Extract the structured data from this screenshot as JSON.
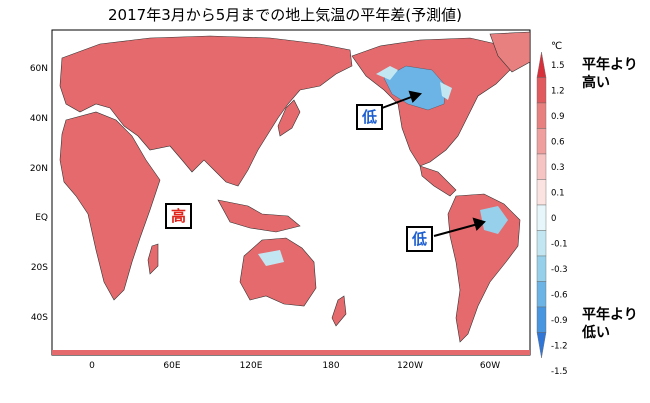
{
  "title": "2017年3月から5月までの地上気温の平年差(予測値)",
  "lat_labels": [
    "60N",
    "40N",
    "20N",
    "EQ",
    "20S",
    "40S"
  ],
  "lon_labels": [
    "0",
    "60E",
    "120E",
    "180",
    "120W",
    "60W"
  ],
  "colorbar": {
    "unit": "℃",
    "ticks": [
      "1.5",
      "1.2",
      "0.9",
      "0.6",
      "0.3",
      "0.1",
      "0",
      "-0.1",
      "-0.3",
      "-0.6",
      "-0.9",
      "-1.2",
      "-1.5"
    ],
    "top_label": "平年より\n高い",
    "bottom_label": "平年より\n低い",
    "colors": [
      "#d7303a",
      "#e05a5e",
      "#e8807f",
      "#ef9f9e",
      "#f5c4c3",
      "#fbe3e2",
      "#e6f6fa",
      "#c3e7f2",
      "#97d0ea",
      "#6cb4e6",
      "#4996e0",
      "#2f76d6"
    ]
  },
  "callouts": {
    "high": {
      "text": "高",
      "color": "#e0241b"
    },
    "low_na": {
      "text": "低",
      "color": "#1e5fd0"
    },
    "low_sa": {
      "text": "低",
      "color": "#1e5fd0"
    }
  }
}
